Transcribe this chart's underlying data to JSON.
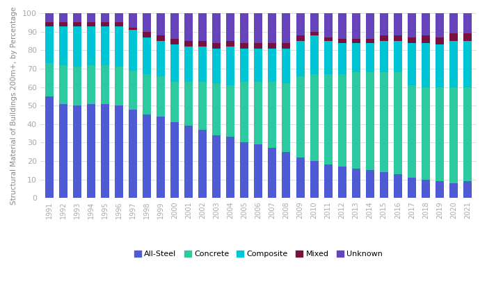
{
  "years": [
    1991,
    1992,
    1993,
    1994,
    1995,
    1996,
    1997,
    1998,
    1999,
    2000,
    2001,
    2002,
    2003,
    2004,
    2005,
    2006,
    2007,
    2008,
    2009,
    2010,
    2011,
    2012,
    2013,
    2014,
    2015,
    2016,
    2017,
    2018,
    2019,
    2020,
    2021
  ],
  "all_steel": [
    55,
    51,
    50,
    51,
    51,
    50,
    48,
    45,
    44,
    41,
    39,
    37,
    34,
    33,
    30,
    29,
    27,
    25,
    22,
    20,
    18,
    17,
    16,
    15,
    14,
    13,
    11,
    10,
    9,
    8,
    9
  ],
  "concrete": [
    18,
    21,
    21,
    21,
    21,
    21,
    21,
    22,
    22,
    22,
    24,
    26,
    28,
    28,
    33,
    34,
    36,
    37,
    44,
    47,
    49,
    50,
    52,
    53,
    54,
    55,
    50,
    50,
    51,
    52,
    51
  ],
  "composite": [
    20,
    21,
    22,
    21,
    21,
    22,
    22,
    20,
    19,
    20,
    19,
    19,
    19,
    21,
    18,
    18,
    18,
    19,
    19,
    21,
    18,
    17,
    16,
    16,
    17,
    17,
    23,
    24,
    23,
    25,
    25
  ],
  "mixed": [
    2,
    2,
    2,
    2,
    2,
    2,
    1,
    3,
    3,
    3,
    3,
    3,
    3,
    3,
    3,
    3,
    3,
    3,
    3,
    2,
    2,
    2,
    2,
    2,
    3,
    3,
    3,
    4,
    4,
    4,
    4
  ],
  "unknown": [
    5,
    5,
    5,
    5,
    5,
    5,
    8,
    10,
    12,
    14,
    15,
    15,
    16,
    15,
    16,
    16,
    16,
    16,
    12,
    10,
    13,
    14,
    14,
    14,
    12,
    12,
    13,
    12,
    13,
    11,
    11
  ],
  "colors": {
    "All-Steel": "#4f5bd5",
    "Concrete": "#2dc9a0",
    "Composite": "#00c5d4",
    "Mixed": "#7a1040",
    "Unknown": "#6644bb"
  },
  "ylabel": "Structural Material of Buildings 200m+, by Percentage",
  "ylim": [
    0,
    100
  ],
  "yticks": [
    0,
    10,
    20,
    30,
    40,
    50,
    60,
    70,
    80,
    90,
    100
  ],
  "legend_labels": [
    "All-Steel",
    "Concrete",
    "Composite",
    "Mixed",
    "Unknown"
  ],
  "background_color": "#ffffff",
  "grid_color": "#dddddd"
}
